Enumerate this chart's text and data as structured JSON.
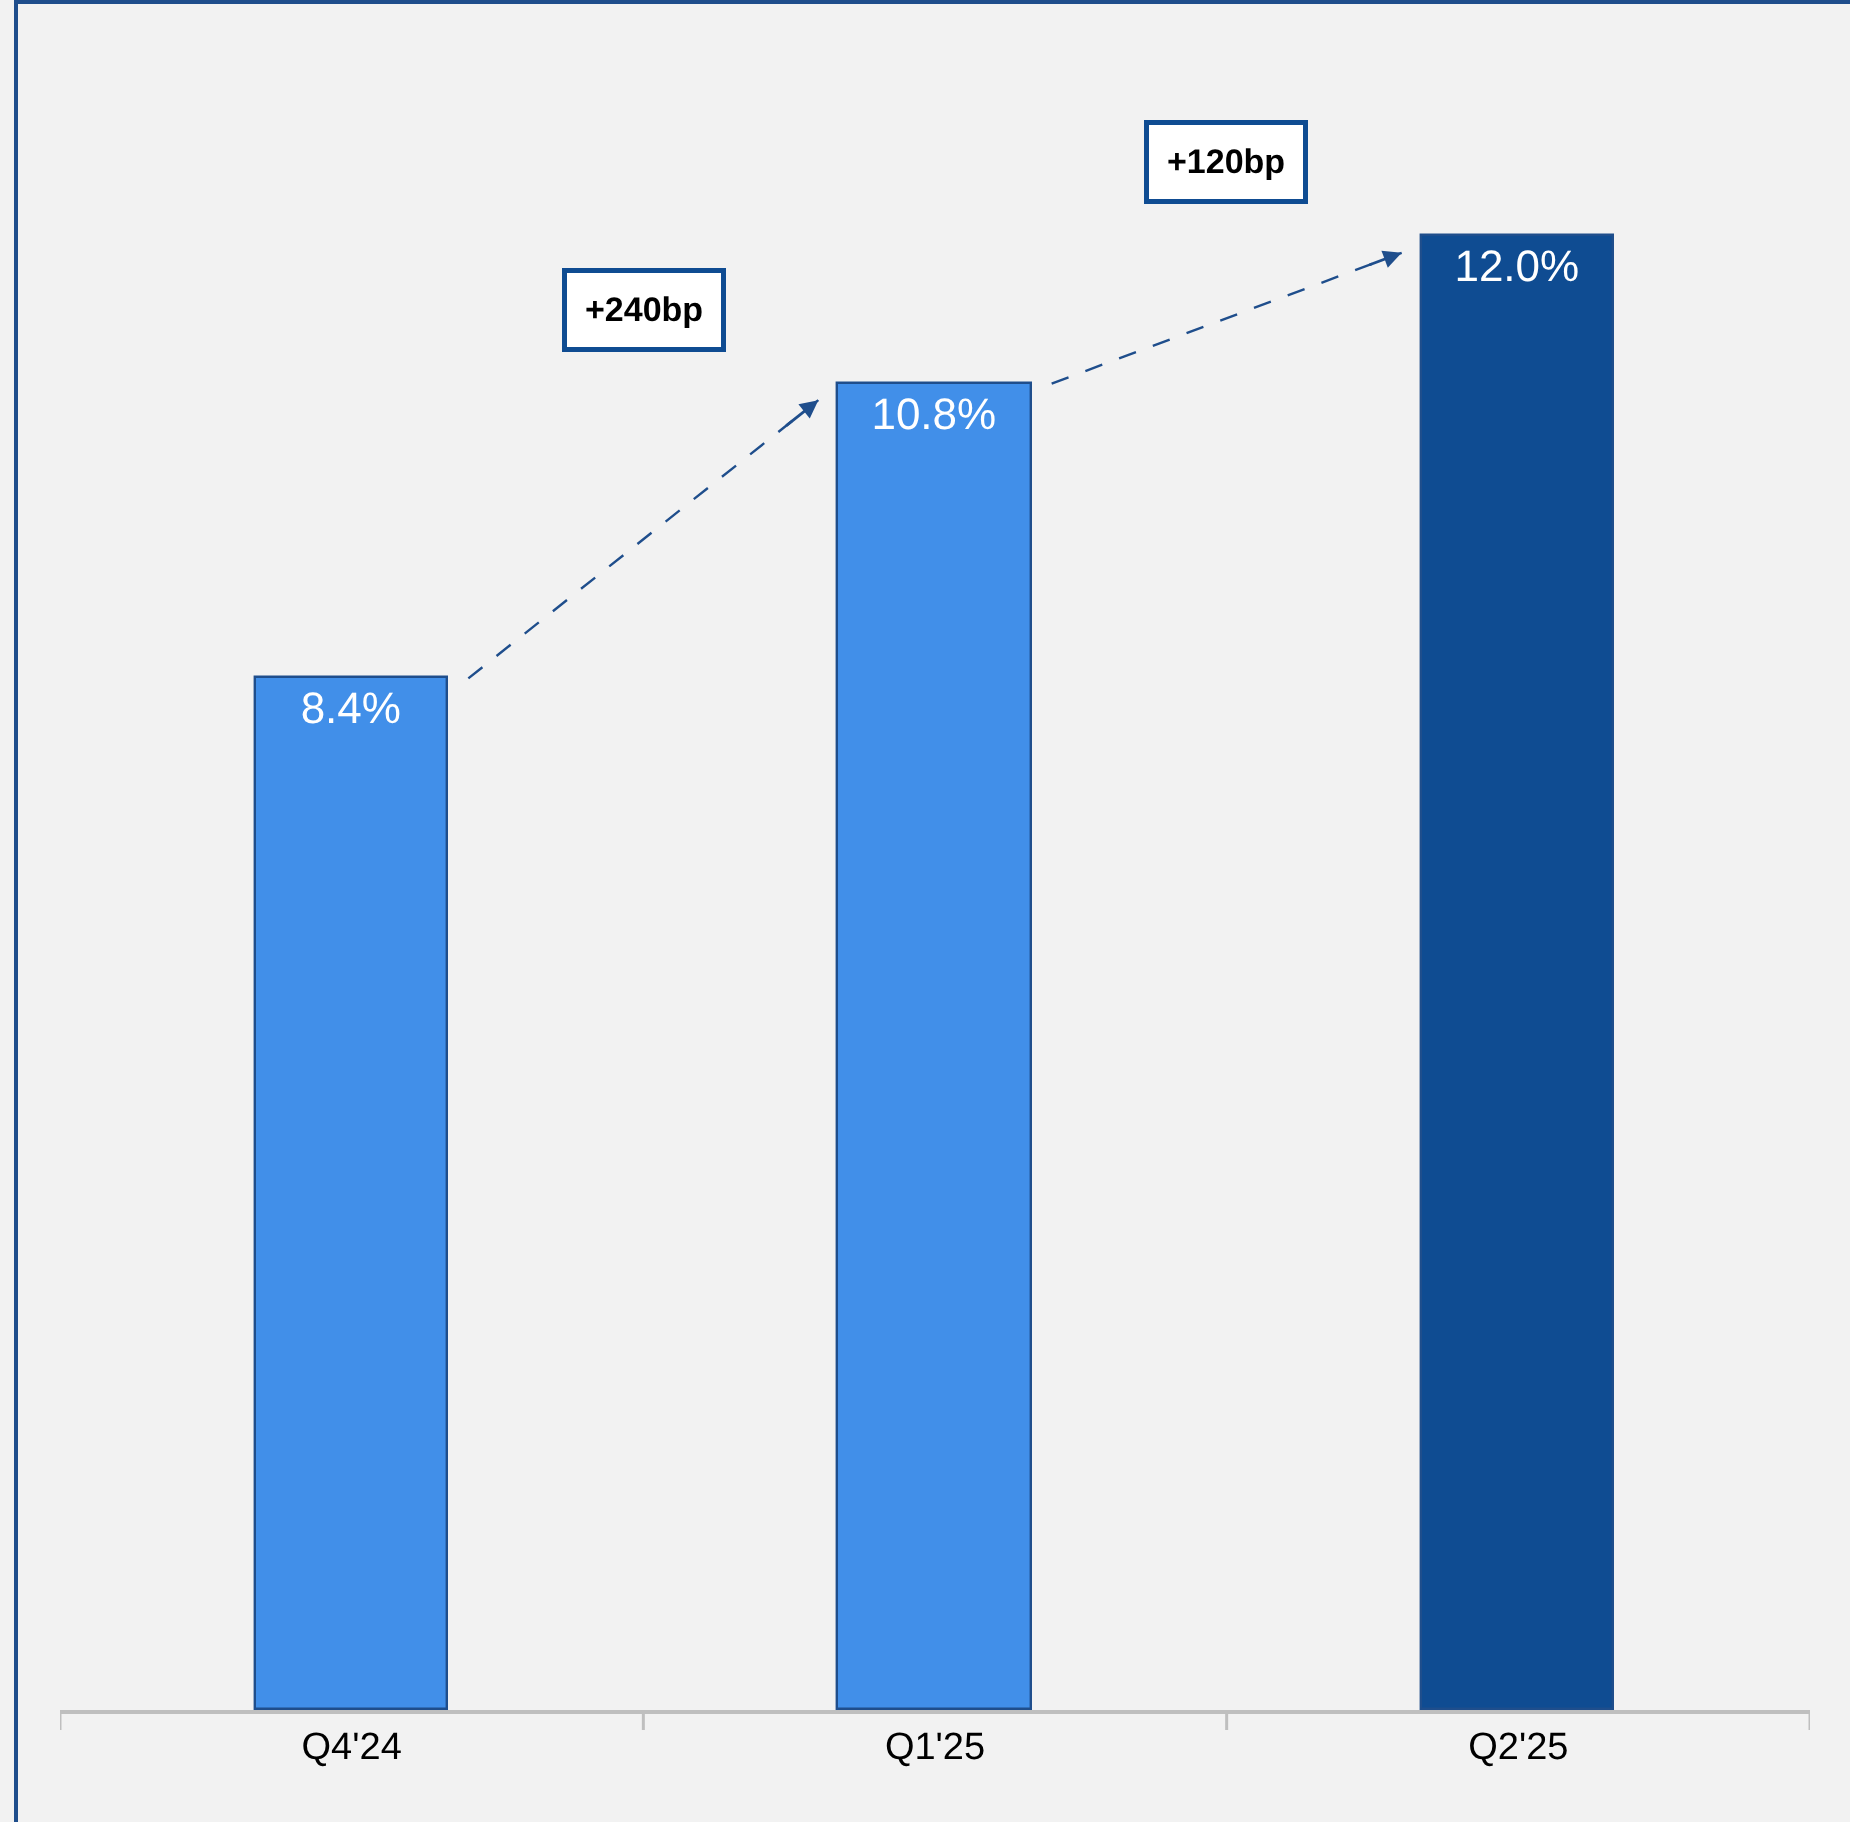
{
  "chart_data": {
    "type": "bar",
    "categories": [
      "Q4'24",
      "Q1'25",
      "Q2'25"
    ],
    "values": [
      8.4,
      10.8,
      12.0
    ],
    "colors": [
      "#418fe9",
      "#418fe9",
      "#0f4c92"
    ],
    "value_labels": [
      "8.4%",
      "10.8%",
      "12.0%"
    ],
    "tick_labels": "x",
    "grid": false,
    "annotations": [
      "+240bp",
      "+120bp"
    ]
  }
}
